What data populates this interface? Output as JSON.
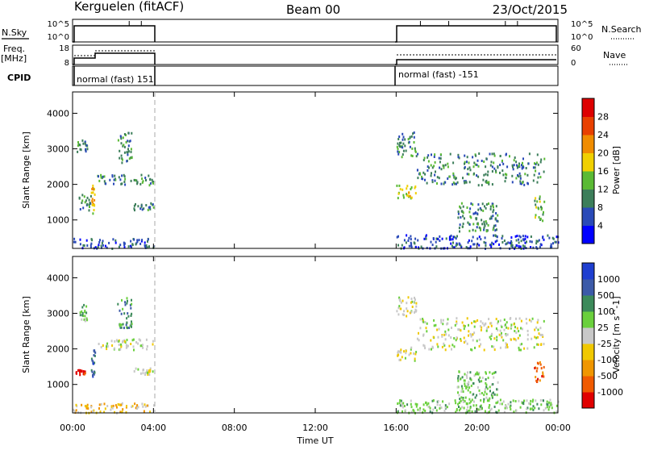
{
  "header": {
    "station": "Kerguelen (fitACF)",
    "beam": "Beam 00",
    "date": "23/Oct/2015"
  },
  "panels": {
    "nsky_label": "N.Sky",
    "nsky_ticks": [
      "10^5",
      "10^0"
    ],
    "nsearch_label": "N.Search",
    "nsearch_ticks": [
      "10^5",
      "10^0"
    ],
    "freq_label_1": "Freq.",
    "freq_label_2": "[MHz]",
    "freq_ticks": [
      "18",
      "8"
    ],
    "nave_label": "Nave",
    "nave_ticks": [
      "60",
      "0"
    ],
    "cpid_label": "CPID",
    "cpid_segments": [
      "normal (fast) 151",
      "normal (fast) -151"
    ]
  },
  "x_axis": {
    "label": "Time UT",
    "ticks": [
      "00:00",
      "04:00",
      "08:00",
      "12:00",
      "16:00",
      "20:00",
      "00:00"
    ],
    "range_hours": [
      0,
      24
    ]
  },
  "colors": {
    "power": [
      "#0000ff",
      "#2a4ab8",
      "#3c7e5a",
      "#5aba34",
      "#f0d000",
      "#f08c00",
      "#e84000",
      "#dd0000"
    ],
    "velocity": [
      "#1e3ed0",
      "#3c5aa8",
      "#3c8a5a",
      "#6ad03c",
      "#c8c8c8",
      "#f0c800",
      "#f09600",
      "#f05a00",
      "#e00000"
    ]
  },
  "chart_data": [
    {
      "type": "heatmap",
      "name": "power",
      "ylabel": "Slant Range [km]",
      "yticks": [
        1000,
        2000,
        3000,
        4000
      ],
      "ylim": [
        200,
        4600
      ],
      "colorbar_label": "Power [dB]",
      "colorbar_ticks": [
        4,
        8,
        12,
        16,
        20,
        24,
        28
      ],
      "colorbar_range": [
        0,
        32
      ],
      "scatter_regions": [
        {
          "t": [
            0.1,
            0.7
          ],
          "r": [
            2900,
            3300
          ],
          "level": 2
        },
        {
          "t": [
            0.3,
            0.9
          ],
          "r": [
            1300,
            1800
          ],
          "level": 2
        },
        {
          "t": [
            0.9,
            1.1
          ],
          "r": [
            1200,
            2000
          ],
          "level": 4
        },
        {
          "t": [
            2.2,
            2.9
          ],
          "r": [
            2600,
            3500
          ],
          "level": 2
        },
        {
          "t": [
            1.2,
            4.0
          ],
          "r": [
            2000,
            2300
          ],
          "level": 2
        },
        {
          "t": [
            3.0,
            4.0
          ],
          "r": [
            1300,
            1500
          ],
          "level": 2
        },
        {
          "t": [
            0.0,
            4.0
          ],
          "r": [
            220,
            500
          ],
          "level": 1
        },
        {
          "t": [
            16.0,
            17.0
          ],
          "r": [
            1600,
            2000
          ],
          "level": 4
        },
        {
          "t": [
            16.0,
            17.0
          ],
          "r": [
            2800,
            3500
          ],
          "level": 2
        },
        {
          "t": [
            17.0,
            23.3
          ],
          "r": [
            2000,
            2900
          ],
          "level": 2
        },
        {
          "t": [
            19.0,
            21.0
          ],
          "r": [
            700,
            1500
          ],
          "level": 2
        },
        {
          "t": [
            22.8,
            23.3
          ],
          "r": [
            1000,
            1700
          ],
          "level": 3
        },
        {
          "t": [
            16.0,
            24.0
          ],
          "r": [
            220,
            600
          ],
          "level": 1
        }
      ]
    },
    {
      "type": "heatmap",
      "name": "velocity",
      "ylabel": "Slant Range [km]",
      "yticks": [
        1000,
        2000,
        3000,
        4000
      ],
      "ylim": [
        200,
        4600
      ],
      "colorbar_label": "Velocity [m s^-1]",
      "colorbar_ticks": [
        "1000",
        "500",
        "100",
        "25",
        "-25",
        "-100",
        "-500",
        "-1000"
      ],
      "scatter_regions": [
        {
          "t": [
            0.1,
            0.6
          ],
          "r": [
            1300,
            1500
          ],
          "level": 8
        },
        {
          "t": [
            0.3,
            0.7
          ],
          "r": [
            2800,
            3300
          ],
          "level": 3
        },
        {
          "t": [
            0.9,
            1.1
          ],
          "r": [
            1200,
            2000
          ],
          "level": 1
        },
        {
          "t": [
            2.2,
            2.9
          ],
          "r": [
            2600,
            3500
          ],
          "level": 2
        },
        {
          "t": [
            1.2,
            4.0
          ],
          "r": [
            2000,
            2300
          ],
          "level": 4
        },
        {
          "t": [
            3.0,
            4.0
          ],
          "r": [
            1300,
            1500
          ],
          "level": 4
        },
        {
          "t": [
            0.0,
            4.0
          ],
          "r": [
            220,
            500
          ],
          "level": 5
        },
        {
          "t": [
            16.0,
            17.0
          ],
          "r": [
            1700,
            2100
          ],
          "level": 4
        },
        {
          "t": [
            16.0,
            17.0
          ],
          "r": [
            2900,
            3500
          ],
          "level": 4
        },
        {
          "t": [
            17.0,
            23.3
          ],
          "r": [
            2000,
            2900
          ],
          "level": 4
        },
        {
          "t": [
            19.0,
            21.0
          ],
          "r": [
            500,
            1400
          ],
          "level": 3
        },
        {
          "t": [
            22.8,
            23.3
          ],
          "r": [
            1100,
            1700
          ],
          "level": 7
        },
        {
          "t": [
            16.0,
            24.0
          ],
          "r": [
            220,
            600
          ],
          "level": 3
        }
      ]
    }
  ]
}
